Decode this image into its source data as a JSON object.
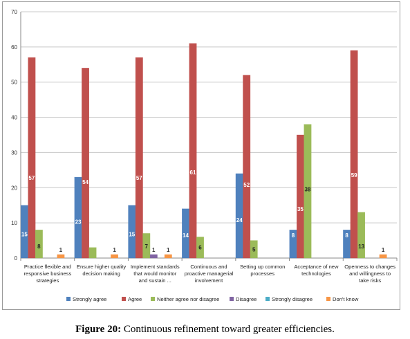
{
  "chart_data": {
    "type": "bar",
    "title": "",
    "xlabel": "",
    "ylabel": "",
    "ylim": [
      0,
      70
    ],
    "yticks": [
      0,
      10,
      20,
      30,
      40,
      50,
      60,
      70
    ],
    "grid": true,
    "legend_position": "bottom",
    "categories": [
      [
        "Practice flexible and",
        "responsive business",
        "strategies"
      ],
      [
        "Ensure higher quality",
        "decision making"
      ],
      [
        "Implement standards",
        "that would monitor",
        "and sustain ..."
      ],
      [
        "Continuous and",
        "proactive managerial",
        "involvement"
      ],
      [
        "Setting up common",
        "processes"
      ],
      [
        "Acceptance of new",
        "technologies"
      ],
      [
        "Openness to changes",
        "and willingness to",
        "take risks"
      ]
    ],
    "series": [
      {
        "name": "Strongly agree",
        "color": "#4f81bd",
        "values": [
          15,
          23,
          15,
          14,
          24,
          8,
          8
        ]
      },
      {
        "name": "Agree",
        "color": "#c0504d",
        "values": [
          57,
          54,
          57,
          61,
          52,
          35,
          59
        ]
      },
      {
        "name": "Neither agree nor disagree",
        "color": "#9bbb59",
        "values": [
          8,
          3,
          7,
          6,
          5,
          38,
          13
        ]
      },
      {
        "name": "Disagree",
        "color": "#8064a2",
        "values": [
          null,
          null,
          1,
          null,
          null,
          null,
          null
        ]
      },
      {
        "name": "Strongly disagree",
        "color": "#4bacc6",
        "values": [
          null,
          null,
          null,
          null,
          null,
          null,
          null
        ]
      },
      {
        "name": "Don't know",
        "color": "#f79646",
        "values": [
          1,
          1,
          1,
          null,
          null,
          null,
          1
        ]
      }
    ],
    "data_labels": [
      {
        "series": 0,
        "index": 0,
        "text": "15"
      },
      {
        "series": 1,
        "index": 0,
        "text": "57"
      },
      {
        "series": 2,
        "index": 0,
        "text": "8"
      },
      {
        "series": 5,
        "index": 0,
        "text": "1"
      },
      {
        "series": 0,
        "index": 1,
        "text": "23"
      },
      {
        "series": 1,
        "index": 1,
        "text": "54"
      },
      {
        "series": 5,
        "index": 1,
        "text": "1"
      },
      {
        "series": 0,
        "index": 2,
        "text": "15"
      },
      {
        "series": 1,
        "index": 2,
        "text": "57"
      },
      {
        "series": 2,
        "index": 2,
        "text": "7"
      },
      {
        "series": 3,
        "index": 2,
        "text": "1"
      },
      {
        "series": 5,
        "index": 2,
        "text": "1"
      },
      {
        "series": 0,
        "index": 3,
        "text": "14"
      },
      {
        "series": 1,
        "index": 3,
        "text": "61"
      },
      {
        "series": 2,
        "index": 3,
        "text": "6"
      },
      {
        "series": 0,
        "index": 4,
        "text": "24"
      },
      {
        "series": 1,
        "index": 4,
        "text": "52"
      },
      {
        "series": 2,
        "index": 4,
        "text": "5"
      },
      {
        "series": 0,
        "index": 5,
        "text": "8"
      },
      {
        "series": 1,
        "index": 5,
        "text": "35"
      },
      {
        "series": 2,
        "index": 5,
        "text": "38"
      },
      {
        "series": 0,
        "index": 6,
        "text": "8"
      },
      {
        "series": 1,
        "index": 6,
        "text": "59"
      },
      {
        "series": 2,
        "index": 6,
        "text": "13"
      },
      {
        "series": 5,
        "index": 6,
        "text": "1"
      }
    ]
  },
  "caption": {
    "label": "Figure 20:",
    "text": " Continuous refinement toward greater efficiencies."
  }
}
